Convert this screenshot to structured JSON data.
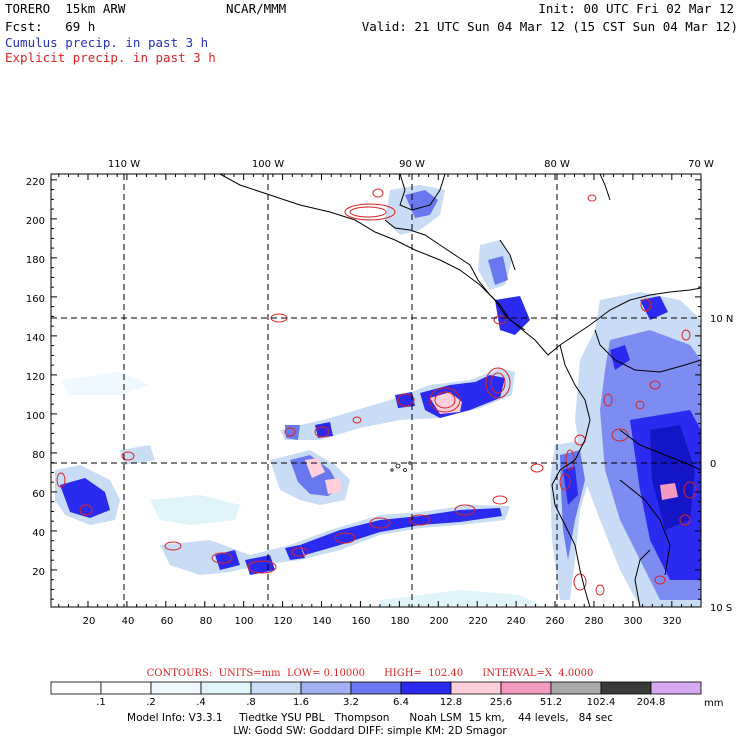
{
  "header": {
    "model": "TORERO  15km ARW",
    "org": "NCAR/MMM",
    "init": "Init: 00 UTC Fri 02 Mar 12",
    "fcst": "Fcst:   69 h",
    "valid": "Valid: 21 UTC Sun 04 Mar 12 (15 CST Sun 04 Mar 12)",
    "cumulus": "Cumulus precip. in past 3 h",
    "explicit": "Explicit precip. in past 3 h"
  },
  "map": {
    "lon_labels": [
      "110 W",
      "100 W",
      "90 W",
      "80 W",
      "70 W"
    ],
    "lat_labels": [
      "10 N",
      "0",
      "10 S"
    ],
    "y_ticks": [
      "220",
      "200",
      "180",
      "160",
      "140",
      "120",
      "100",
      "80",
      "60",
      "40",
      "20"
    ],
    "x_ticks": [
      "20",
      "40",
      "60",
      "80",
      "100",
      "120",
      "140",
      "160",
      "180",
      "200",
      "220",
      "240",
      "260",
      "280",
      "300",
      "320"
    ]
  },
  "chart_data": {
    "type": "heatmap",
    "title": "Cumulus / Explicit precip. in past 3 h",
    "grid_x_range": [
      1,
      335
    ],
    "grid_y_range": [
      1,
      223
    ],
    "contours": {
      "label": "CONTOURS:  UNITS=mm  LOW= 0.10000      HIGH=  102.40      INTERVAL=X  4.0000",
      "low": 0.1,
      "high": 102.4,
      "interval_factor": 4.0
    },
    "colorbar": {
      "levels": [
        ".1",
        ".2",
        ".4",
        ".8",
        "1.6",
        "3.2",
        "6.4",
        "12.8",
        "25.6",
        "51.2",
        "102.4",
        "204.8"
      ],
      "colors": [
        "#ffffff",
        "#ffffff",
        "#f0f8ff",
        "#e0f5fa",
        "#c9dcf5",
        "#a0b0f0",
        "#6a78f0",
        "#2a2af0",
        "#ffd0dc",
        "#f29ac0",
        "#a9a9a9",
        "#3a3a3a",
        "#d6a9f0"
      ],
      "units": "mm"
    }
  },
  "footer": {
    "line1": "Model Info: V3.3.1     Tiedtke YSU PBL   Thompson      Noah LSM  15 km,    44 levels,   84 sec",
    "line2": "LW: Godd SW: Goddard DIFF: simple KM: 2D Smagor"
  }
}
